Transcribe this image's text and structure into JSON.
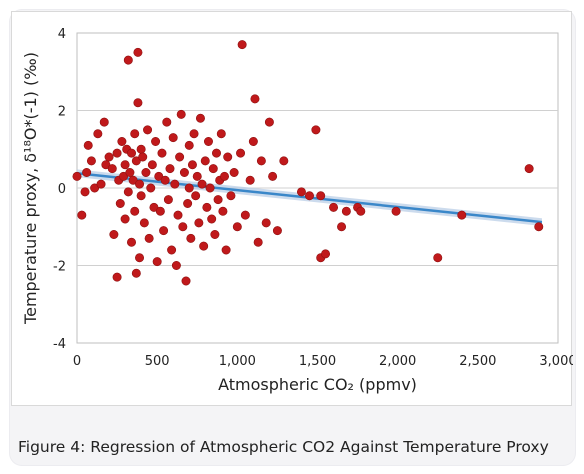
{
  "caption": "Figure 4: Regression of Atmospheric CO2 Against Temperature Proxy",
  "colors": {
    "point": "#c0191b",
    "point_stroke": "#8e1212",
    "trend": "#3a87c9",
    "trend_band": "#b7cce6",
    "grid": "#d0d0d0",
    "plot_border": "#bfbfbf"
  },
  "chart_data": {
    "type": "scatter",
    "xlabel": "Atmospheric CO₂ (ppmv)",
    "ylabel": "Temperature proxy, δ¹⁸O*(-1) (‰)",
    "xlim": [
      0,
      3000
    ],
    "ylim": [
      -4,
      4
    ],
    "x_ticks": [
      0,
      500,
      1000,
      1500,
      2000,
      2500,
      3000
    ],
    "x_tick_labels": [
      "0",
      "500",
      "1,000",
      "1,500",
      "2,000",
      "2,500",
      "3,000"
    ],
    "y_ticks": [
      -4,
      -2,
      0,
      2,
      4
    ],
    "y_tick_labels": [
      "-4",
      "-2",
      "0",
      "2",
      "4"
    ],
    "grid": "horizontal",
    "trendline": {
      "x": [
        0,
        2900
      ],
      "y": [
        0.38,
        -0.88
      ]
    },
    "points": [
      [
        0,
        0.3
      ],
      [
        30,
        -0.7
      ],
      [
        50,
        -0.1
      ],
      [
        60,
        0.4
      ],
      [
        70,
        1.1
      ],
      [
        90,
        0.7
      ],
      [
        110,
        0.0
      ],
      [
        130,
        1.4
      ],
      [
        150,
        0.1
      ],
      [
        170,
        1.7
      ],
      [
        180,
        0.6
      ],
      [
        200,
        0.8
      ],
      [
        220,
        0.5
      ],
      [
        230,
        -1.2
      ],
      [
        250,
        -2.3
      ],
      [
        250,
        0.9
      ],
      [
        260,
        0.2
      ],
      [
        270,
        -0.4
      ],
      [
        280,
        1.2
      ],
      [
        290,
        0.3
      ],
      [
        300,
        -0.8
      ],
      [
        300,
        0.6
      ],
      [
        310,
        1.0
      ],
      [
        320,
        -0.1
      ],
      [
        320,
        3.3
      ],
      [
        330,
        0.4
      ],
      [
        340,
        -1.4
      ],
      [
        340,
        0.9
      ],
      [
        350,
        0.2
      ],
      [
        360,
        1.4
      ],
      [
        360,
        -0.6
      ],
      [
        370,
        -2.2
      ],
      [
        370,
        0.7
      ],
      [
        380,
        3.5
      ],
      [
        380,
        2.2
      ],
      [
        390,
        0.1
      ],
      [
        390,
        -1.8
      ],
      [
        400,
        1.0
      ],
      [
        400,
        -0.2
      ],
      [
        410,
        0.8
      ],
      [
        420,
        -0.9
      ],
      [
        430,
        0.4
      ],
      [
        440,
        1.5
      ],
      [
        450,
        -1.3
      ],
      [
        460,
        0.0
      ],
      [
        470,
        0.6
      ],
      [
        480,
        -0.5
      ],
      [
        490,
        1.2
      ],
      [
        500,
        -1.9
      ],
      [
        510,
        0.3
      ],
      [
        520,
        -0.6
      ],
      [
        530,
        0.9
      ],
      [
        540,
        -1.1
      ],
      [
        550,
        0.2
      ],
      [
        560,
        1.7
      ],
      [
        570,
        -0.3
      ],
      [
        580,
        0.5
      ],
      [
        590,
        -1.6
      ],
      [
        600,
        1.3
      ],
      [
        610,
        0.1
      ],
      [
        620,
        -2.0
      ],
      [
        630,
        -0.7
      ],
      [
        640,
        0.8
      ],
      [
        650,
        1.9
      ],
      [
        660,
        -1.0
      ],
      [
        670,
        0.4
      ],
      [
        680,
        -2.4
      ],
      [
        690,
        -0.4
      ],
      [
        700,
        1.1
      ],
      [
        700,
        0.0
      ],
      [
        710,
        -1.3
      ],
      [
        720,
        0.6
      ],
      [
        730,
        1.4
      ],
      [
        740,
        -0.2
      ],
      [
        750,
        0.3
      ],
      [
        760,
        -0.9
      ],
      [
        770,
        1.8
      ],
      [
        780,
        0.1
      ],
      [
        790,
        -1.5
      ],
      [
        800,
        0.7
      ],
      [
        810,
        -0.5
      ],
      [
        820,
        1.2
      ],
      [
        830,
        0.0
      ],
      [
        840,
        -0.8
      ],
      [
        850,
        0.5
      ],
      [
        860,
        -1.2
      ],
      [
        870,
        0.9
      ],
      [
        880,
        -0.3
      ],
      [
        890,
        0.2
      ],
      [
        900,
        1.4
      ],
      [
        910,
        -0.6
      ],
      [
        920,
        0.3
      ],
      [
        930,
        -1.6
      ],
      [
        940,
        0.8
      ],
      [
        960,
        -0.2
      ],
      [
        980,
        0.4
      ],
      [
        1000,
        -1.0
      ],
      [
        1020,
        0.9
      ],
      [
        1030,
        3.7
      ],
      [
        1050,
        -0.7
      ],
      [
        1080,
        0.2
      ],
      [
        1100,
        1.2
      ],
      [
        1110,
        2.3
      ],
      [
        1130,
        -1.4
      ],
      [
        1150,
        0.7
      ],
      [
        1180,
        -0.9
      ],
      [
        1200,
        1.7
      ],
      [
        1220,
        0.3
      ],
      [
        1250,
        -1.1
      ],
      [
        1290,
        0.7
      ],
      [
        1400,
        -0.1
      ],
      [
        1450,
        -0.2
      ],
      [
        1490,
        1.5
      ],
      [
        1520,
        -0.2
      ],
      [
        1520,
        -1.8
      ],
      [
        1550,
        -1.7
      ],
      [
        1600,
        -0.5
      ],
      [
        1650,
        -1.0
      ],
      [
        1680,
        -0.6
      ],
      [
        1750,
        -0.5
      ],
      [
        1770,
        -0.6
      ],
      [
        1990,
        -0.6
      ],
      [
        2250,
        -1.8
      ],
      [
        2400,
        -0.7
      ],
      [
        2820,
        0.5
      ],
      [
        2880,
        -1.0
      ]
    ]
  }
}
